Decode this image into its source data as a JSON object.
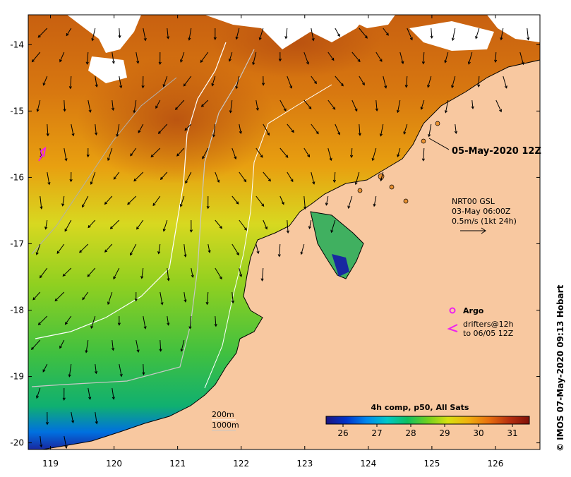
{
  "map": {
    "date_label": "05-May-2020 12Z",
    "vector_box": {
      "line1": "NRT00 GSL",
      "line2": "03-May 06:00Z",
      "line3": "0.5m/s (1kt 24h)"
    },
    "argo_label": "Argo",
    "drifters_line1": "drifters@12h",
    "drifters_line2": "to 06/05 12Z",
    "contours": {
      "c200": "200m",
      "c1000": "1000m"
    },
    "colorbar": {
      "title": "4h comp, p50, All Sats",
      "ticks": [
        "26",
        "27",
        "28",
        "29",
        "30",
        "31"
      ],
      "range": [
        25.5,
        31.5
      ],
      "colors": [
        "#1c1480",
        "#0033cc",
        "#0088ee",
        "#00c8c8",
        "#10c060",
        "#70d020",
        "#d8e010",
        "#f0b010",
        "#e87010",
        "#b83010",
        "#801008"
      ]
    },
    "lon_ticks": [
      "119",
      "120",
      "121",
      "122",
      "123",
      "124",
      "125",
      "126"
    ],
    "lat_ticks": [
      "-14",
      "-15",
      "-16",
      "-17",
      "-18",
      "-19",
      "-20"
    ],
    "lon_range": [
      118.65,
      126.7
    ],
    "lat_range": [
      -20.1,
      -13.55
    ],
    "credit": "© IMOS 07-May-2020 09:13 Hobart",
    "colors": {
      "land": "#f8c8a0",
      "cloud": "#ffffff",
      "warm": "#d87010",
      "argo": "#ee22ee"
    }
  }
}
